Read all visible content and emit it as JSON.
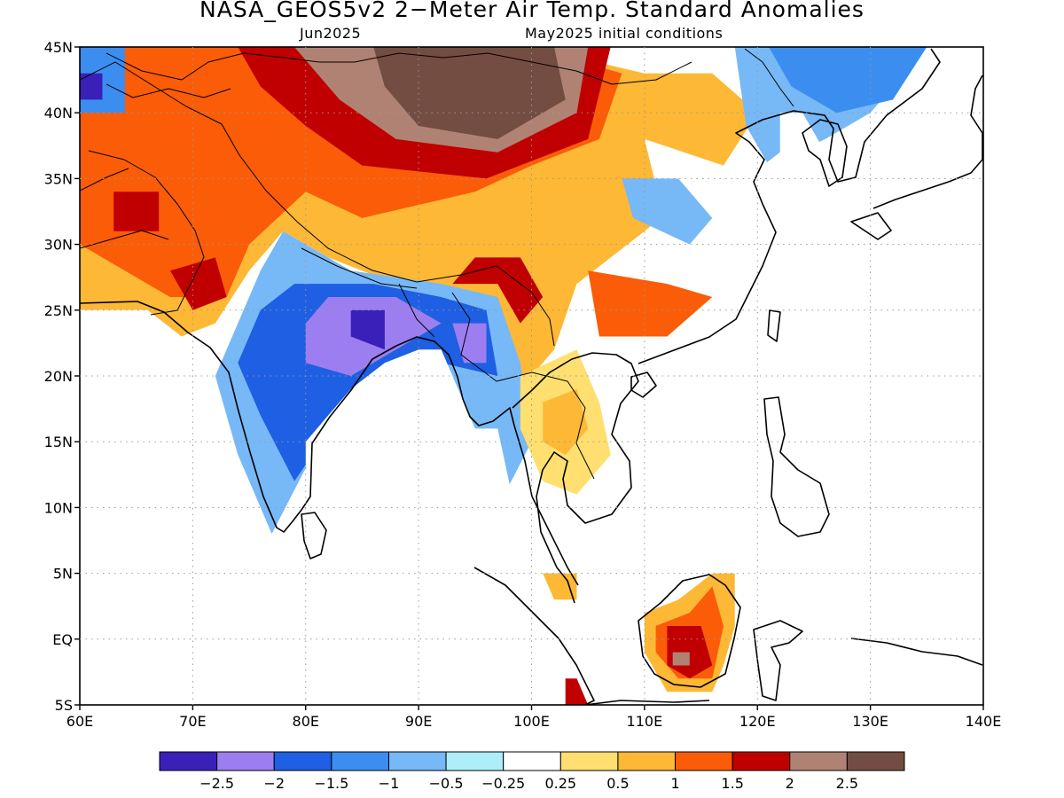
{
  "title": "NASA_GEOS5v2 2−Meter Air Temp. Standard Anomalies",
  "subtitle_left": "Jun2025",
  "subtitle_right": "May2025 initial conditions",
  "lat_labels": [
    "45N",
    "40N",
    "35N",
    "30N",
    "25N",
    "20N",
    "15N",
    "10N",
    "5N",
    "EQ",
    "5S"
  ],
  "lon_labels": [
    "60E",
    "70E",
    "80E",
    "90E",
    "100E",
    "110E",
    "120E",
    "130E",
    "140E"
  ],
  "extent": {
    "lon_min": 60,
    "lon_max": 140,
    "lat_min": -5,
    "lat_max": 45
  },
  "colorbar": {
    "colors": [
      "#3a1fb8",
      "#9d7ef0",
      "#1e5fe3",
      "#3b8ef0",
      "#77b8f7",
      "#aeeefa",
      "#ffffff",
      "#fedf70",
      "#fdb836",
      "#fb5c07",
      "#c00000",
      "#b08274",
      "#734c42"
    ],
    "labels": [
      "−2.5",
      "−2",
      "−1.5",
      "−1",
      "−0.5",
      "−0.25",
      "0.25",
      "0.5",
      "1",
      "1.5",
      "2",
      "2.5"
    ]
  },
  "regions": [
    {
      "name": "nw-warm-orange",
      "color": "#fdb836",
      "pts": [
        [
          60,
          45
        ],
        [
          100,
          45
        ],
        [
          110,
          43
        ],
        [
          116,
          43
        ],
        [
          120,
          40
        ],
        [
          117,
          36
        ],
        [
          110,
          31
        ],
        [
          104,
          27
        ],
        [
          102,
          22
        ],
        [
          100,
          20
        ],
        [
          98,
          20
        ],
        [
          95,
          22
        ],
        [
          92,
          26
        ],
        [
          88,
          27
        ],
        [
          82,
          29
        ],
        [
          78,
          31
        ],
        [
          75,
          28
        ],
        [
          72,
          24
        ],
        [
          69,
          23
        ],
        [
          66,
          25
        ],
        [
          60,
          25
        ]
      ]
    },
    {
      "name": "nw-warm-red-orange",
      "color": "#fb5c07",
      "pts": [
        [
          60,
          45
        ],
        [
          100,
          45
        ],
        [
          108,
          43
        ],
        [
          106,
          38
        ],
        [
          100,
          36
        ],
        [
          95,
          34
        ],
        [
          85,
          32
        ],
        [
          80,
          34
        ],
        [
          75,
          30
        ],
        [
          73,
          26
        ],
        [
          68,
          26
        ],
        [
          64,
          28
        ],
        [
          60,
          30
        ]
      ]
    },
    {
      "name": "mongolia-dark-red",
      "color": "#c00000",
      "pts": [
        [
          74,
          45
        ],
        [
          107,
          45
        ],
        [
          105,
          38
        ],
        [
          96,
          35
        ],
        [
          85,
          36
        ],
        [
          80,
          39
        ],
        [
          76,
          42
        ]
      ]
    },
    {
      "name": "mongolia-rose",
      "color": "#b08274",
      "pts": [
        [
          79,
          45
        ],
        [
          105,
          45
        ],
        [
          104,
          40
        ],
        [
          97,
          37
        ],
        [
          88,
          38
        ],
        [
          83,
          41
        ]
      ]
    },
    {
      "name": "mongolia-brown",
      "color": "#734c42",
      "pts": [
        [
          86,
          45
        ],
        [
          102,
          45
        ],
        [
          103,
          41
        ],
        [
          97,
          38
        ],
        [
          90,
          39
        ],
        [
          87,
          42
        ]
      ]
    },
    {
      "name": "pakistan-red",
      "color": "#c00000",
      "pts": [
        [
          68,
          28
        ],
        [
          72,
          29
        ],
        [
          73,
          26
        ],
        [
          70,
          25
        ]
      ]
    },
    {
      "name": "iran-red",
      "color": "#c00000",
      "pts": [
        [
          63,
          34
        ],
        [
          67,
          34
        ],
        [
          67,
          31
        ],
        [
          63,
          31
        ]
      ]
    },
    {
      "name": "tibet-red",
      "color": "#c00000",
      "pts": [
        [
          95,
          29
        ],
        [
          99,
          29
        ],
        [
          101,
          26
        ],
        [
          99,
          24
        ],
        [
          97,
          27
        ],
        [
          93,
          27
        ]
      ]
    },
    {
      "name": "south-china-orange",
      "color": "#fb5c07",
      "pts": [
        [
          105,
          28
        ],
        [
          112,
          27
        ],
        [
          116,
          26
        ],
        [
          112,
          23
        ],
        [
          106,
          23
        ]
      ]
    },
    {
      "name": "korea-light-blue",
      "color": "#77b8f7",
      "pts": [
        [
          118,
          45
        ],
        [
          135,
          45
        ],
        [
          130,
          40
        ],
        [
          126,
          38
        ],
        [
          121,
          36
        ],
        [
          119,
          39
        ]
      ]
    },
    {
      "name": "ne-china-blue",
      "color": "#3b8ef0",
      "pts": [
        [
          121,
          45
        ],
        [
          135,
          45
        ],
        [
          132,
          41
        ],
        [
          127,
          40
        ],
        [
          123,
          42
        ]
      ]
    },
    {
      "name": "east-china-white",
      "color": "#ffffff",
      "pts": [
        [
          110,
          38
        ],
        [
          117,
          36
        ],
        [
          120,
          31
        ],
        [
          117,
          29
        ],
        [
          112,
          31
        ]
      ]
    },
    {
      "name": "central-china-light-blue",
      "color": "#77b8f7",
      "pts": [
        [
          108,
          35
        ],
        [
          113,
          35
        ],
        [
          116,
          32
        ],
        [
          114,
          30
        ],
        [
          109,
          32
        ]
      ]
    },
    {
      "name": "india-light-blue",
      "color": "#77b8f7",
      "pts": [
        [
          78,
          31
        ],
        [
          84,
          28
        ],
        [
          92,
          27
        ],
        [
          97,
          26
        ],
        [
          99,
          21
        ],
        [
          100,
          15
        ],
        [
          97,
          10
        ],
        [
          92,
          20
        ],
        [
          87,
          21
        ],
        [
          82,
          16
        ],
        [
          80,
          13
        ],
        [
          77,
          8
        ],
        [
          74,
          14
        ],
        [
          72,
          20
        ],
        [
          74,
          24
        ],
        [
          76,
          28
        ]
      ]
    },
    {
      "name": "india-blue",
      "color": "#1e5fe3",
      "pts": [
        [
          79,
          27
        ],
        [
          86,
          27
        ],
        [
          92,
          26
        ],
        [
          96,
          25
        ],
        [
          97,
          20
        ],
        [
          92,
          21
        ],
        [
          87,
          21
        ],
        [
          83,
          17
        ],
        [
          79,
          12
        ],
        [
          76,
          17
        ],
        [
          74,
          21
        ],
        [
          76,
          25
        ]
      ]
    },
    {
      "name": "india-lilac",
      "color": "#9d7ef0",
      "pts": [
        [
          82,
          26
        ],
        [
          88,
          26
        ],
        [
          92,
          24
        ],
        [
          88,
          22
        ],
        [
          84,
          20
        ],
        [
          80,
          21
        ],
        [
          80,
          24
        ]
      ]
    },
    {
      "name": "india-purple",
      "color": "#3a1fb8",
      "pts": [
        [
          84,
          25
        ],
        [
          87,
          25
        ],
        [
          87,
          22
        ],
        [
          84,
          23
        ]
      ]
    },
    {
      "name": "burma-lilac",
      "color": "#9d7ef0",
      "pts": [
        [
          93,
          24
        ],
        [
          96,
          24
        ],
        [
          96,
          21
        ],
        [
          94,
          21
        ]
      ]
    },
    {
      "name": "indochina-yellow",
      "color": "#fedf70",
      "pts": [
        [
          99,
          20
        ],
        [
          104,
          22
        ],
        [
          106,
          18
        ],
        [
          107,
          14
        ],
        [
          104,
          11
        ],
        [
          101,
          12
        ],
        [
          99,
          16
        ]
      ]
    },
    {
      "name": "indochina-orange",
      "color": "#fdb836",
      "pts": [
        [
          101,
          18
        ],
        [
          104,
          19
        ],
        [
          105,
          16
        ],
        [
          103,
          14
        ],
        [
          101,
          15
        ]
      ]
    },
    {
      "name": "sumatra-orange",
      "color": "#fdb836",
      "pts": [
        [
          97,
          2
        ],
        [
          101,
          0
        ],
        [
          103,
          -3
        ],
        [
          105,
          -5
        ],
        [
          103,
          -5
        ],
        [
          100,
          -1
        ]
      ]
    },
    {
      "name": "sumatra-red",
      "color": "#c00000",
      "pts": [
        [
          102,
          -3
        ],
        [
          104,
          -3
        ],
        [
          105,
          -5
        ],
        [
          103,
          -5
        ]
      ]
    },
    {
      "name": "malaya-orange",
      "color": "#fdb836",
      "pts": [
        [
          101,
          5
        ],
        [
          104,
          5
        ],
        [
          104,
          3
        ],
        [
          102,
          3
        ]
      ]
    },
    {
      "name": "borneo-orange",
      "color": "#fdb836",
      "pts": [
        [
          110,
          2
        ],
        [
          113,
          3
        ],
        [
          116,
          5
        ],
        [
          118,
          5
        ],
        [
          118,
          1
        ],
        [
          117,
          -2
        ],
        [
          116,
          -4
        ],
        [
          112,
          -4
        ],
        [
          110,
          -1
        ]
      ]
    },
    {
      "name": "borneo-red-orange",
      "color": "#fb5c07",
      "pts": [
        [
          111,
          1
        ],
        [
          114,
          2
        ],
        [
          116,
          4
        ],
        [
          117,
          1
        ],
        [
          116,
          -3
        ],
        [
          113,
          -3
        ],
        [
          111,
          -1
        ]
      ]
    },
    {
      "name": "borneo-red",
      "color": "#c00000",
      "pts": [
        [
          112,
          1
        ],
        [
          115,
          1
        ],
        [
          116,
          -2
        ],
        [
          114,
          -3
        ],
        [
          112,
          -2
        ]
      ]
    },
    {
      "name": "borneo-rose",
      "color": "#b08274",
      "pts": [
        [
          112.5,
          -1
        ],
        [
          114,
          -1
        ],
        [
          114,
          -2
        ],
        [
          112.5,
          -2
        ]
      ]
    },
    {
      "name": "new-guinea-red",
      "color": "#c00000",
      "pts": [
        [
          136,
          -3
        ],
        [
          140,
          -3
        ],
        [
          140,
          -5
        ],
        [
          137,
          -5
        ]
      ]
    },
    {
      "name": "sulawesi-red",
      "color": "#c00000",
      "pts": [
        [
          120,
          -2
        ],
        [
          121,
          -2
        ],
        [
          121,
          -3
        ],
        [
          120,
          -3
        ]
      ]
    },
    {
      "name": "luzon-rose",
      "color": "#b08274",
      "pts": [
        [
          120,
          17
        ],
        [
          121,
          17
        ],
        [
          121,
          16
        ],
        [
          120,
          16
        ]
      ]
    },
    {
      "name": "kazakh-blue",
      "color": "#3b8ef0",
      "pts": [
        [
          60,
          45
        ],
        [
          64,
          45
        ],
        [
          64,
          40
        ],
        [
          60,
          40
        ]
      ]
    },
    {
      "name": "kazakh-purple",
      "color": "#3a1fb8",
      "pts": [
        [
          60,
          43
        ],
        [
          62,
          43
        ],
        [
          62,
          41
        ],
        [
          60,
          41
        ]
      ]
    },
    {
      "name": "srilanka-orange",
      "color": "#fdb836",
      "pts": [
        [
          80,
          7
        ],
        [
          81,
          7
        ],
        [
          81,
          6
        ],
        [
          80,
          6
        ]
      ]
    },
    {
      "name": "sea-mask-arabian",
      "color": "#ffffff",
      "pts": [
        [
          60,
          25
        ],
        [
          66,
          25
        ],
        [
          69,
          23
        ],
        [
          72,
          20
        ],
        [
          73,
          16
        ],
        [
          75,
          12
        ],
        [
          77,
          8
        ],
        [
          78,
          8
        ],
        [
          79,
          10
        ],
        [
          80,
          13
        ],
        [
          80,
          15
        ],
        [
          82,
          17
        ],
        [
          84,
          19
        ],
        [
          87,
          21
        ],
        [
          90,
          22
        ],
        [
          92,
          22
        ],
        [
          94,
          18
        ],
        [
          95,
          16
        ],
        [
          97,
          16
        ],
        [
          98,
          12
        ],
        [
          99,
          8
        ],
        [
          100,
          6
        ],
        [
          100,
          3
        ],
        [
          103,
          1
        ],
        [
          103,
          -5
        ],
        [
          60,
          -5
        ]
      ]
    },
    {
      "name": "sea-mask-scs",
      "color": "#ffffff",
      "pts": [
        [
          106,
          20
        ],
        [
          108,
          21
        ],
        [
          110,
          21
        ],
        [
          112,
          22
        ],
        [
          116,
          23
        ],
        [
          119,
          25
        ],
        [
          121,
          28
        ],
        [
          122,
          31
        ],
        [
          121,
          33
        ],
        [
          119,
          35
        ],
        [
          122,
          37
        ],
        [
          122,
          40
        ],
        [
          124,
          40
        ],
        [
          126,
          37
        ],
        [
          127,
          35
        ],
        [
          129,
          35
        ],
        [
          131,
          34
        ],
        [
          134,
          35
        ],
        [
          136,
          36
        ],
        [
          140,
          38
        ],
        [
          140,
          -5
        ],
        [
          118,
          -5
        ],
        [
          118,
          1
        ],
        [
          118,
          5
        ],
        [
          116,
          5
        ],
        [
          113,
          3
        ],
        [
          110,
          2
        ],
        [
          108,
          -1
        ],
        [
          106,
          -5
        ],
        [
          105,
          -5
        ],
        [
          105,
          -2
        ],
        [
          104,
          2
        ],
        [
          104,
          5
        ],
        [
          103,
          8
        ],
        [
          105,
          9
        ],
        [
          107,
          11
        ],
        [
          109,
          12
        ],
        [
          109,
          15
        ],
        [
          107,
          17
        ],
        [
          106,
          19
        ]
      ]
    }
  ]
}
